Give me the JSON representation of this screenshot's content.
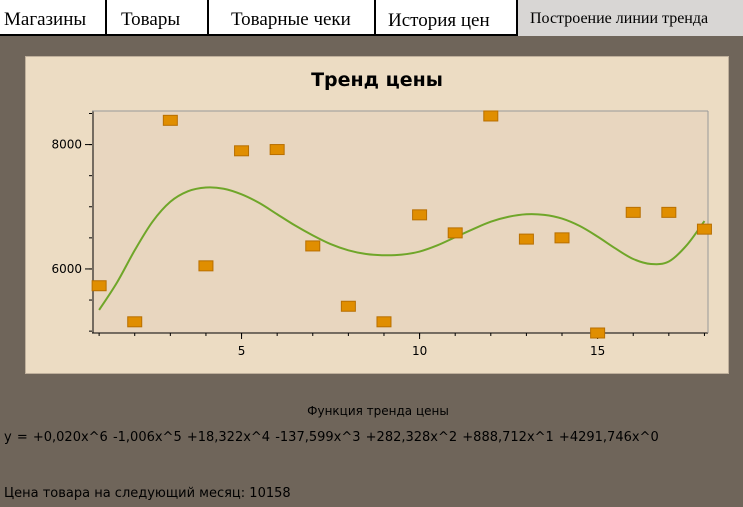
{
  "tabs": [
    {
      "label": "Магазины"
    },
    {
      "label": "Товары"
    },
    {
      "label": "Товарные чеки"
    },
    {
      "label": "История цен"
    },
    {
      "label": "Построение линии тренда",
      "active": true
    }
  ],
  "chart_data": {
    "type": "scatter",
    "title": "Тренд цены",
    "x_ticks": [
      "5",
      "10",
      "15"
    ],
    "y_ticks": [
      "6000",
      "8000"
    ],
    "xlim": [
      0.8,
      18.1
    ],
    "ylim": [
      4970,
      8540
    ],
    "grid": false,
    "legend": "none",
    "colors": {
      "points": "#e08e00",
      "trend": "#6fa629"
    },
    "series": [
      {
        "type": "scatter",
        "points": [
          {
            "x": 1,
            "y": 5730
          },
          {
            "x": 2,
            "y": 5150
          },
          {
            "x": 3,
            "y": 8390
          },
          {
            "x": 4,
            "y": 6050
          },
          {
            "x": 5,
            "y": 7900
          },
          {
            "x": 6,
            "y": 7920
          },
          {
            "x": 7,
            "y": 6370
          },
          {
            "x": 8,
            "y": 5400
          },
          {
            "x": 9,
            "y": 5150
          },
          {
            "x": 10,
            "y": 6870
          },
          {
            "x": 11,
            "y": 6580
          },
          {
            "x": 12,
            "y": 8460
          },
          {
            "x": 13,
            "y": 6480
          },
          {
            "x": 14,
            "y": 6500
          },
          {
            "x": 15,
            "y": 4970
          },
          {
            "x": 16,
            "y": 6910
          },
          {
            "x": 17,
            "y": 6910
          },
          {
            "x": 18,
            "y": 6640
          }
        ]
      },
      {
        "type": "line",
        "points": [
          {
            "x": 1.0,
            "y": 5340
          },
          {
            "x": 1.5,
            "y": 5780
          },
          {
            "x": 2.0,
            "y": 6300
          },
          {
            "x": 2.5,
            "y": 6760
          },
          {
            "x": 3.0,
            "y": 7080
          },
          {
            "x": 3.5,
            "y": 7250
          },
          {
            "x": 4.0,
            "y": 7310
          },
          {
            "x": 4.5,
            "y": 7290
          },
          {
            "x": 5.0,
            "y": 7200
          },
          {
            "x": 5.5,
            "y": 7060
          },
          {
            "x": 6.0,
            "y": 6880
          },
          {
            "x": 6.5,
            "y": 6700
          },
          {
            "x": 7.0,
            "y": 6540
          },
          {
            "x": 7.5,
            "y": 6400
          },
          {
            "x": 8.0,
            "y": 6300
          },
          {
            "x": 8.5,
            "y": 6240
          },
          {
            "x": 9.0,
            "y": 6220
          },
          {
            "x": 9.5,
            "y": 6230
          },
          {
            "x": 10.0,
            "y": 6280
          },
          {
            "x": 10.5,
            "y": 6380
          },
          {
            "x": 11.0,
            "y": 6510
          },
          {
            "x": 11.5,
            "y": 6640
          },
          {
            "x": 12.0,
            "y": 6760
          },
          {
            "x": 12.5,
            "y": 6840
          },
          {
            "x": 13.0,
            "y": 6880
          },
          {
            "x": 13.5,
            "y": 6870
          },
          {
            "x": 14.0,
            "y": 6810
          },
          {
            "x": 14.5,
            "y": 6690
          },
          {
            "x": 15.0,
            "y": 6520
          },
          {
            "x": 15.5,
            "y": 6330
          },
          {
            "x": 16.0,
            "y": 6160
          },
          {
            "x": 16.5,
            "y": 6080
          },
          {
            "x": 17.0,
            "y": 6120
          },
          {
            "x": 17.5,
            "y": 6380
          },
          {
            "x": 18.0,
            "y": 6770
          }
        ]
      }
    ]
  },
  "trend": {
    "heading": "Функция тренда цены",
    "formula": "y =  +0,020x^6  -1,006x^5 +18,322x^4  -137,599x^3 +282,328x^2 +888,712x^1 +4291,746x^0"
  },
  "forecast": {
    "label": "Цена товара на следующий месяц:",
    "value": "10158"
  }
}
